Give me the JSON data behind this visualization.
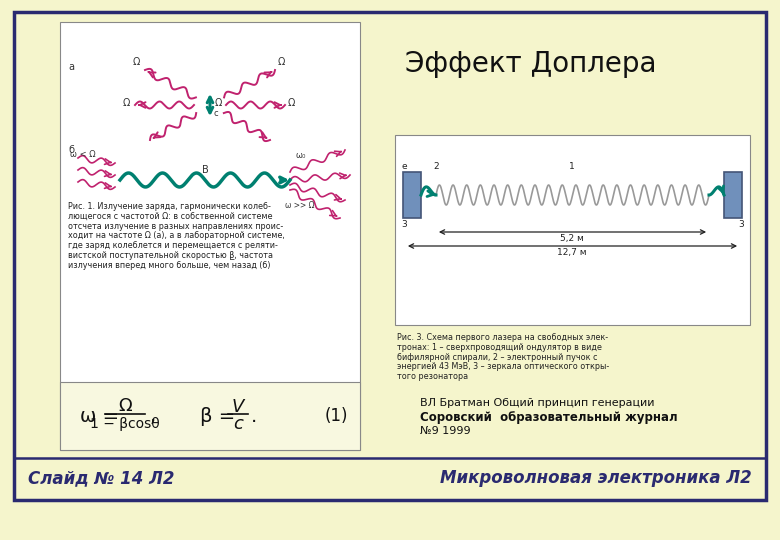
{
  "background_color": "#f5f5cc",
  "outer_border_color": "#2a2a70",
  "inner_bg_color": "#f5f5cc",
  "white_bg": "#ffffff",
  "title": "Эффект Доплера",
  "bottom_left_text": "Слайд № 14 Л2",
  "bottom_right_text": "Микроволновая электроника Л2",
  "ref_text_line1": "ВЛ Братман Общий принцип генерации",
  "ref_text_line2": "Соровский  образовательный журнал",
  "ref_text_line3": "№9 1999",
  "pink": "#c0226e",
  "teal": "#008070",
  "caption1_lines": [
    "Рис. 1. Излучение заряда, гармонически колеб-",
    "лющегося с частотой Ω: в собственной системе",
    "отсчета излучение в разных направлениях проис-",
    "ходит на частоте Ω (а), а в лабораторной системе,",
    "где заряд колеблется и перемещается с реляти-",
    "вистской поступательной скоростью β̲, частота",
    "излучения вперед много больше, чем назад (б)"
  ],
  "caption3_lines": [
    "Рис. 3. Схема первого лазера на свободных элек-",
    "тронах: 1 – сверхпроводящий ондулятор в виде",
    "бифилярной спирали, 2 – электронный пучок с",
    "энергией 43 МэВ, 3 – зеркала оптического откры-",
    "того резонатора"
  ]
}
